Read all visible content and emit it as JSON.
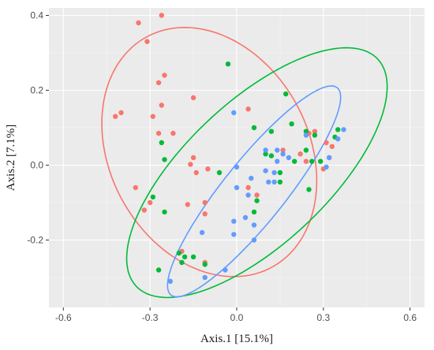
{
  "chart_data": {
    "type": "scatter",
    "title": "",
    "xlabel": "Axis.1 [15.1%]",
    "ylabel": "Axis.2 [7.1%]",
    "xlim": [
      -0.65,
      0.65
    ],
    "ylim": [
      -0.38,
      0.42
    ],
    "x_ticks": [
      -0.6,
      -0.3,
      0.0,
      0.3,
      0.6
    ],
    "x_tick_labels": [
      "-0.6",
      "-0.3",
      "0.0",
      "0.3",
      "0.6"
    ],
    "y_ticks": [
      -0.2,
      0.0,
      0.2,
      0.4
    ],
    "y_tick_labels": [
      "-0.2",
      "0.0",
      "0.2",
      "0.4"
    ],
    "grid": true,
    "legend": "none",
    "series": [
      {
        "color": "#f8766d",
        "points": [
          [
            -0.26,
            0.4
          ],
          [
            -0.34,
            0.38
          ],
          [
            -0.31,
            0.33
          ],
          [
            -0.25,
            0.24
          ],
          [
            -0.27,
            0.22
          ],
          [
            -0.15,
            0.18
          ],
          [
            -0.26,
            0.16
          ],
          [
            -0.4,
            0.14
          ],
          [
            -0.42,
            0.13
          ],
          [
            -0.29,
            0.13
          ],
          [
            -0.27,
            0.085
          ],
          [
            -0.22,
            0.085
          ],
          [
            -0.15,
            0.02
          ],
          [
            -0.16,
            0.002
          ],
          [
            -0.1,
            -0.01
          ],
          [
            -0.14,
            -0.02
          ],
          [
            -0.35,
            -0.06
          ],
          [
            -0.11,
            -0.1
          ],
          [
            -0.17,
            -0.105
          ],
          [
            -0.11,
            -0.13
          ],
          [
            -0.32,
            -0.12
          ],
          [
            -0.3,
            -0.1
          ],
          [
            0.04,
            -0.06
          ],
          [
            0.07,
            -0.08
          ],
          [
            0.04,
            0.15
          ],
          [
            0.16,
            0.04
          ],
          [
            0.27,
            0.09
          ],
          [
            0.25,
            0.085
          ],
          [
            0.31,
            0.06
          ],
          [
            0.32,
            0.02
          ],
          [
            0.3,
            -0.01
          ],
          [
            0.22,
            0.03
          ],
          [
            0.24,
            0.01
          ],
          [
            0.33,
            0.05
          ],
          [
            -0.19,
            -0.23
          ],
          [
            -0.11,
            -0.26
          ]
        ]
      },
      {
        "color": "#00ba38",
        "points": [
          [
            -0.03,
            0.27
          ],
          [
            -0.26,
            0.06
          ],
          [
            -0.25,
            0.015
          ],
          [
            -0.29,
            -0.085
          ],
          [
            -0.25,
            -0.125
          ],
          [
            0.06,
            0.1
          ],
          [
            0.17,
            0.19
          ],
          [
            0.12,
            0.09
          ],
          [
            0.19,
            0.11
          ],
          [
            0.24,
            0.09
          ],
          [
            0.27,
            0.08
          ],
          [
            0.35,
            0.095
          ],
          [
            0.34,
            0.075
          ],
          [
            0.1,
            0.03
          ],
          [
            0.12,
            0.025
          ],
          [
            0.24,
            0.04
          ],
          [
            0.29,
            0.01
          ],
          [
            0.26,
            0.01
          ],
          [
            0.2,
            0.01
          ],
          [
            0.15,
            -0.02
          ],
          [
            0.15,
            -0.045
          ],
          [
            0.25,
            -0.065
          ],
          [
            0.07,
            -0.095
          ],
          [
            0.06,
            -0.125
          ],
          [
            -0.06,
            -0.02
          ],
          [
            -0.27,
            -0.28
          ],
          [
            -0.11,
            -0.265
          ],
          [
            -0.15,
            -0.245
          ],
          [
            -0.18,
            -0.245
          ],
          [
            -0.2,
            -0.235
          ],
          [
            -0.19,
            -0.26
          ]
        ]
      },
      {
        "color": "#619cff",
        "points": [
          [
            -0.01,
            0.14
          ],
          [
            0.24,
            0.08
          ],
          [
            0.35,
            0.07
          ],
          [
            0.37,
            0.095
          ],
          [
            0.1,
            0.04
          ],
          [
            0.14,
            0.04
          ],
          [
            0.16,
            0.03
          ],
          [
            0.14,
            0.01
          ],
          [
            0.18,
            0.02
          ],
          [
            0.31,
            -0.005
          ],
          [
            0.32,
            0.02
          ],
          [
            0.1,
            -0.015
          ],
          [
            0.13,
            -0.02
          ],
          [
            0.0,
            -0.005
          ],
          [
            0.05,
            -0.035
          ],
          [
            0.13,
            -0.045
          ],
          [
            0.11,
            -0.045
          ],
          [
            0.0,
            -0.06
          ],
          [
            0.04,
            -0.08
          ],
          [
            -0.01,
            -0.15
          ],
          [
            0.03,
            -0.14
          ],
          [
            -0.12,
            -0.18
          ],
          [
            -0.01,
            -0.185
          ],
          [
            0.06,
            -0.16
          ],
          [
            0.06,
            -0.2
          ],
          [
            -0.11,
            -0.3
          ],
          [
            -0.23,
            -0.31
          ],
          [
            -0.04,
            -0.28
          ]
        ]
      }
    ],
    "ellipses": [
      {
        "color": "#f8766d",
        "cx": -0.095,
        "cy": 0.035,
        "rx": 0.395,
        "ry": 0.305,
        "angle_deg": -32
      },
      {
        "color": "#00ba38",
        "cx": 0.07,
        "cy": -0.02,
        "rx": 0.52,
        "ry": 0.21,
        "angle_deg": 33
      },
      {
        "color": "#619cff",
        "cx": 0.06,
        "cy": -0.07,
        "rx": 0.4,
        "ry": 0.095,
        "angle_deg": 43
      }
    ]
  }
}
